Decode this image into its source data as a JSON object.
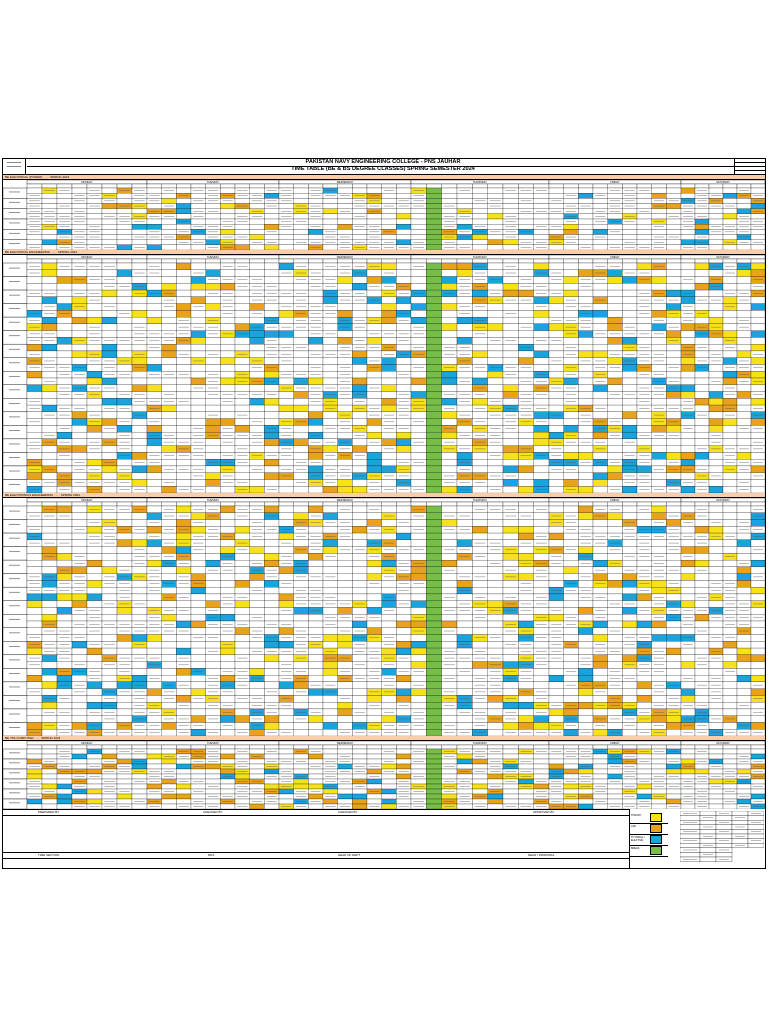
{
  "header": {
    "title_line1": "PAKISTAN NAVY ENGINEERING COLLEGE - PNS JAUHAR",
    "title_line2": "TIME TABLE (BE & BS DEGREE CLASSES) SPRING SEMESTER 2024"
  },
  "days": [
    "MONDAY",
    "TUESDAY",
    "WEDNESDAY",
    "THURSDAY",
    "FRIDAY",
    "SATURDAY"
  ],
  "colors": {
    "yellow": "#f7e11b",
    "orange": "#e8a21c",
    "blue": "#1aa3dc",
    "green": "#76be47",
    "section_header": "#f9cda8"
  },
  "sections": [
    {
      "id": "s1",
      "label": "BE ELECTRICAL (POWER) · ... · SPRING 2024",
      "rows": 6
    },
    {
      "id": "s2",
      "label": "BE ELECTRICAL ENGINEERING · ... · SPRING 2024",
      "rows": 17
    },
    {
      "id": "s3",
      "label": "BE ELECTRONICS ENGINEERING · ... · SPRING 2024",
      "rows": 17
    },
    {
      "id": "s4",
      "label": "BE / BS COMPUTER · ... · SPRING 2024",
      "rows": 6
    }
  ],
  "footer": {
    "prepared_by": "PREPARED BY",
    "checked_by_1": "CHECKED BY",
    "checked_by_2": "CHECKED BY",
    "approved_by": "APPROVED BY",
    "sig_1": "TIME SECTION",
    "sig_2": "DDS",
    "sig_3": "HEAD OF DEPT",
    "sig_4": "DEAN / PRINCIPAL"
  },
  "legend": [
    {
      "color": "#f7e11b",
      "label": "THEORY"
    },
    {
      "color": "#e8a21c",
      "label": "LAB"
    },
    {
      "color": "#1aa3dc",
      "label": "TUTORIAL / ELECTIVE"
    },
    {
      "color": "#76be47",
      "label": "BREAK"
    }
  ]
}
